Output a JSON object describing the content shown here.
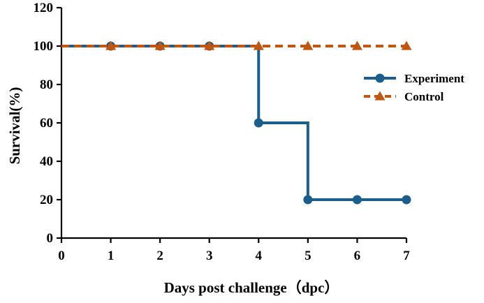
{
  "chart_data": {
    "type": "line",
    "xlabel": "Days post challenge（dpc）",
    "ylabel": "Survival(%)",
    "xlim": [
      0,
      7
    ],
    "ylim": [
      0,
      120
    ],
    "x_ticks": [
      "0",
      "1",
      "2",
      "3",
      "4",
      "5",
      "6",
      "7"
    ],
    "y_ticks": [
      "0",
      "20",
      "40",
      "60",
      "80",
      "100",
      "120"
    ],
    "grid": false,
    "legend_position": "right",
    "step": true,
    "series": [
      {
        "name": "Experiment",
        "color": "#1b5e8c",
        "marker": "circle",
        "line_style": "solid",
        "x": [
          0,
          1,
          2,
          3,
          4,
          5,
          6,
          7
        ],
        "y": [
          100,
          100,
          100,
          100,
          60,
          20,
          20,
          20
        ]
      },
      {
        "name": "Control",
        "color": "#c0560f",
        "marker": "triangle",
        "line_style": "dashed",
        "x": [
          0,
          1,
          2,
          3,
          4,
          5,
          6,
          7
        ],
        "y": [
          100,
          100,
          100,
          100,
          100,
          100,
          100,
          100
        ]
      }
    ]
  }
}
